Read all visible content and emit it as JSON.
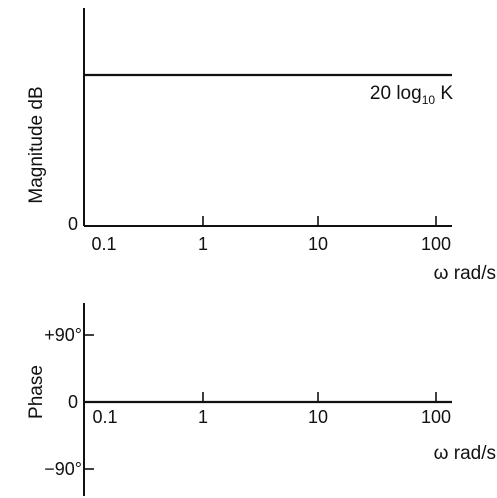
{
  "chart_data": [
    {
      "type": "line",
      "x_scale": "log",
      "xlim": [
        0.1,
        100
      ],
      "xticks": [
        0.1,
        1,
        10,
        100
      ],
      "x_tick_labels": [
        "0.1",
        "1",
        "10",
        "100"
      ],
      "xlabel": "ω rad/s",
      "ylabel": "Magnitude  dB",
      "y_tick_labels": [
        "0"
      ],
      "grid": false,
      "series": [
        {
          "x": [
            0.1,
            100
          ],
          "y": [
            "20 log₁₀ K",
            "20 log₁₀ K"
          ]
        }
      ],
      "annotation": {
        "base": "20 log",
        "sub": "10",
        "after": " K"
      }
    },
    {
      "type": "line",
      "x_scale": "log",
      "xlim": [
        0.1,
        100
      ],
      "ylim": [
        -90,
        90
      ],
      "xticks": [
        0.1,
        1,
        10,
        100
      ],
      "x_tick_labels": [
        "0.1",
        "1",
        "10",
        "100"
      ],
      "yticks": [
        90,
        0,
        -90
      ],
      "y_tick_labels": [
        "+90°",
        "0",
        "−90°"
      ],
      "xlabel": "ω rad/s",
      "ylabel": "Phase",
      "grid": false,
      "series": [
        {
          "x": [
            0.1,
            100
          ],
          "y": [
            0,
            0
          ]
        }
      ]
    }
  ]
}
